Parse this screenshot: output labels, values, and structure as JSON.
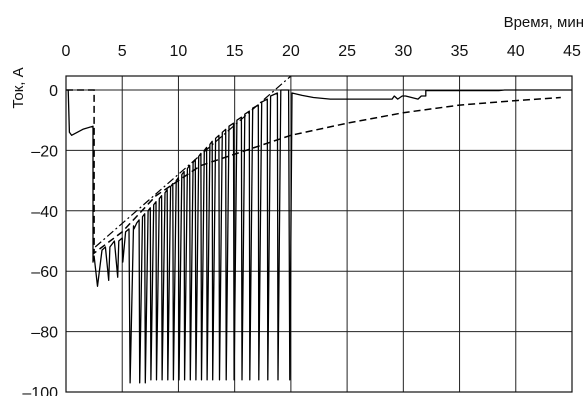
{
  "chart_data": {
    "type": "line",
    "title": "",
    "xlabel": "Время, мин",
    "ylabel": "Ток, А",
    "xlim": [
      0,
      45
    ],
    "ylim": [
      -100,
      0
    ],
    "x_ticks": [
      0,
      5,
      10,
      15,
      20,
      25,
      30,
      35,
      40,
      45
    ],
    "y_ticks": [
      0,
      -20,
      -40,
      -60,
      -80,
      -100
    ],
    "x_tick_labels": [
      "0",
      "5",
      "10",
      "15",
      "20",
      "25",
      "30",
      "35",
      "40",
      "45"
    ],
    "y_tick_labels": [
      "0",
      "–20",
      "–40",
      "–60",
      "–80",
      "–100"
    ],
    "grid": true,
    "legend": "none",
    "series": [
      {
        "style": "solid",
        "x": [
          0.2,
          0.3,
          0.5,
          1.5,
          2.4,
          2.4,
          2.5,
          2.8,
          3.2,
          3.5,
          3.8,
          3.9,
          4.3,
          4.6,
          4.7,
          5.0,
          5.05,
          5.3,
          5.6,
          5.7,
          6.0,
          6.05,
          6.3,
          6.5,
          6.55,
          6.8,
          7.0,
          7.05,
          7.3,
          7.5,
          7.55,
          7.8,
          8.0,
          8.05,
          8.3,
          8.5,
          8.55,
          8.8,
          9.0,
          9.05,
          9.3,
          9.5,
          9.55,
          9.8,
          10.0,
          10.05,
          10.3,
          10.5,
          10.55,
          10.8,
          11.0,
          11.05,
          11.3,
          11.5,
          11.55,
          11.8,
          12.0,
          12.05,
          12.3,
          12.5,
          12.55,
          12.8,
          13.0,
          13.05,
          13.3,
          13.6,
          13.65,
          13.9,
          14.2,
          14.25,
          14.5,
          14.9,
          14.95,
          15.2,
          15.6,
          15.65,
          15.9,
          16.3,
          16.35,
          16.6,
          17.1,
          17.15,
          17.4,
          17.9,
          17.95,
          18.2,
          18.8,
          18.85,
          19.1,
          19.8,
          19.9,
          20.1,
          21.0,
          22.0,
          23.5,
          25.5,
          27.5,
          29.0,
          29.2,
          29.5,
          29.9,
          30.2,
          31.3,
          31.6,
          32.0,
          32.0,
          33.0,
          35.0,
          38.5,
          39.0,
          40.5,
          42.0,
          43.5,
          45.0
        ],
        "y": [
          0,
          -14,
          -15,
          -13,
          -12,
          -57,
          -55,
          -65,
          -53,
          -52,
          -63,
          -52,
          -50,
          -62,
          -50,
          -49,
          -57,
          -47,
          -46,
          -97,
          -45,
          -46,
          -44,
          -43,
          -97,
          -42,
          -41,
          -97,
          -40,
          -39,
          -96,
          -38,
          -37,
          -96,
          -36,
          -35,
          -96,
          -34,
          -33,
          -96,
          -32,
          -31,
          -96,
          -30,
          -29,
          -96,
          -28,
          -27,
          -96,
          -26,
          -25,
          -96,
          -24,
          -23,
          -96,
          -22,
          -21,
          -96,
          -20,
          -19,
          -96,
          -18,
          -17,
          -96,
          -16,
          -15,
          -96,
          -14,
          -13,
          -96,
          -12,
          -11,
          -96,
          -10,
          -9,
          -96,
          -8,
          -7,
          -96,
          -6,
          -5,
          -96,
          -4,
          -3,
          -96,
          -2,
          -1,
          -96,
          0,
          0,
          -96,
          -1,
          -1.8,
          -2.5,
          -3,
          -3,
          -3,
          -3,
          -2,
          -3,
          -2,
          -2,
          -3,
          -2,
          -2,
          -0.2,
          -0.2,
          -0.2,
          -0.2,
          0,
          0,
          0,
          0,
          0
        ]
      },
      {
        "style": "dashed",
        "x": [
          0,
          2.5,
          2.5,
          5,
          8,
          12,
          16,
          20,
          25,
          30,
          35,
          40,
          44
        ],
        "y": [
          0,
          0,
          -54,
          -47,
          -35,
          -25,
          -20,
          -15,
          -11,
          -7.5,
          -5,
          -3.5,
          -2.5
        ]
      },
      {
        "style": "dashdot",
        "x": [
          2.6,
          20
        ],
        "y": [
          -52,
          5
        ]
      }
    ]
  }
}
